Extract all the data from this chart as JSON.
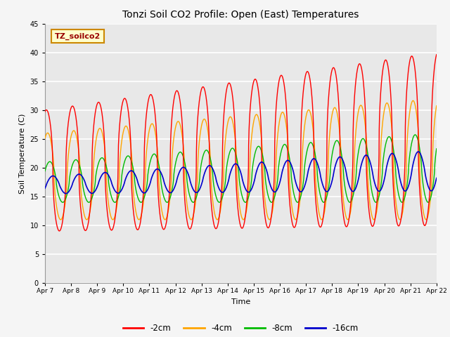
{
  "title": "Tonzi Soil CO2 Profile: Open (East) Temperatures",
  "xlabel": "Time",
  "ylabel": "Soil Temperature (C)",
  "ylim": [
    0,
    45
  ],
  "yticks": [
    0,
    5,
    10,
    15,
    20,
    25,
    30,
    35,
    40,
    45
  ],
  "legend_label": "TZ_soilco2",
  "series_labels": [
    "-2cm",
    "-4cm",
    "-8cm",
    "-16cm"
  ],
  "series_colors": [
    "#ff0000",
    "#ffa500",
    "#00bb00",
    "#0000cc"
  ],
  "x_tick_labels": [
    "Apr 7",
    "Apr 8",
    "Apr 9",
    "Apr 10",
    "Apr 11",
    "Apr 12",
    "Apr 13",
    "Apr 14",
    "Apr 15",
    "Apr 16",
    "Apr 17",
    "Apr 18",
    "Apr 19",
    "Apr 20",
    "Apr 21",
    "Apr 22"
  ],
  "plot_bg_color": "#e8e8e8",
  "n_days": 15
}
